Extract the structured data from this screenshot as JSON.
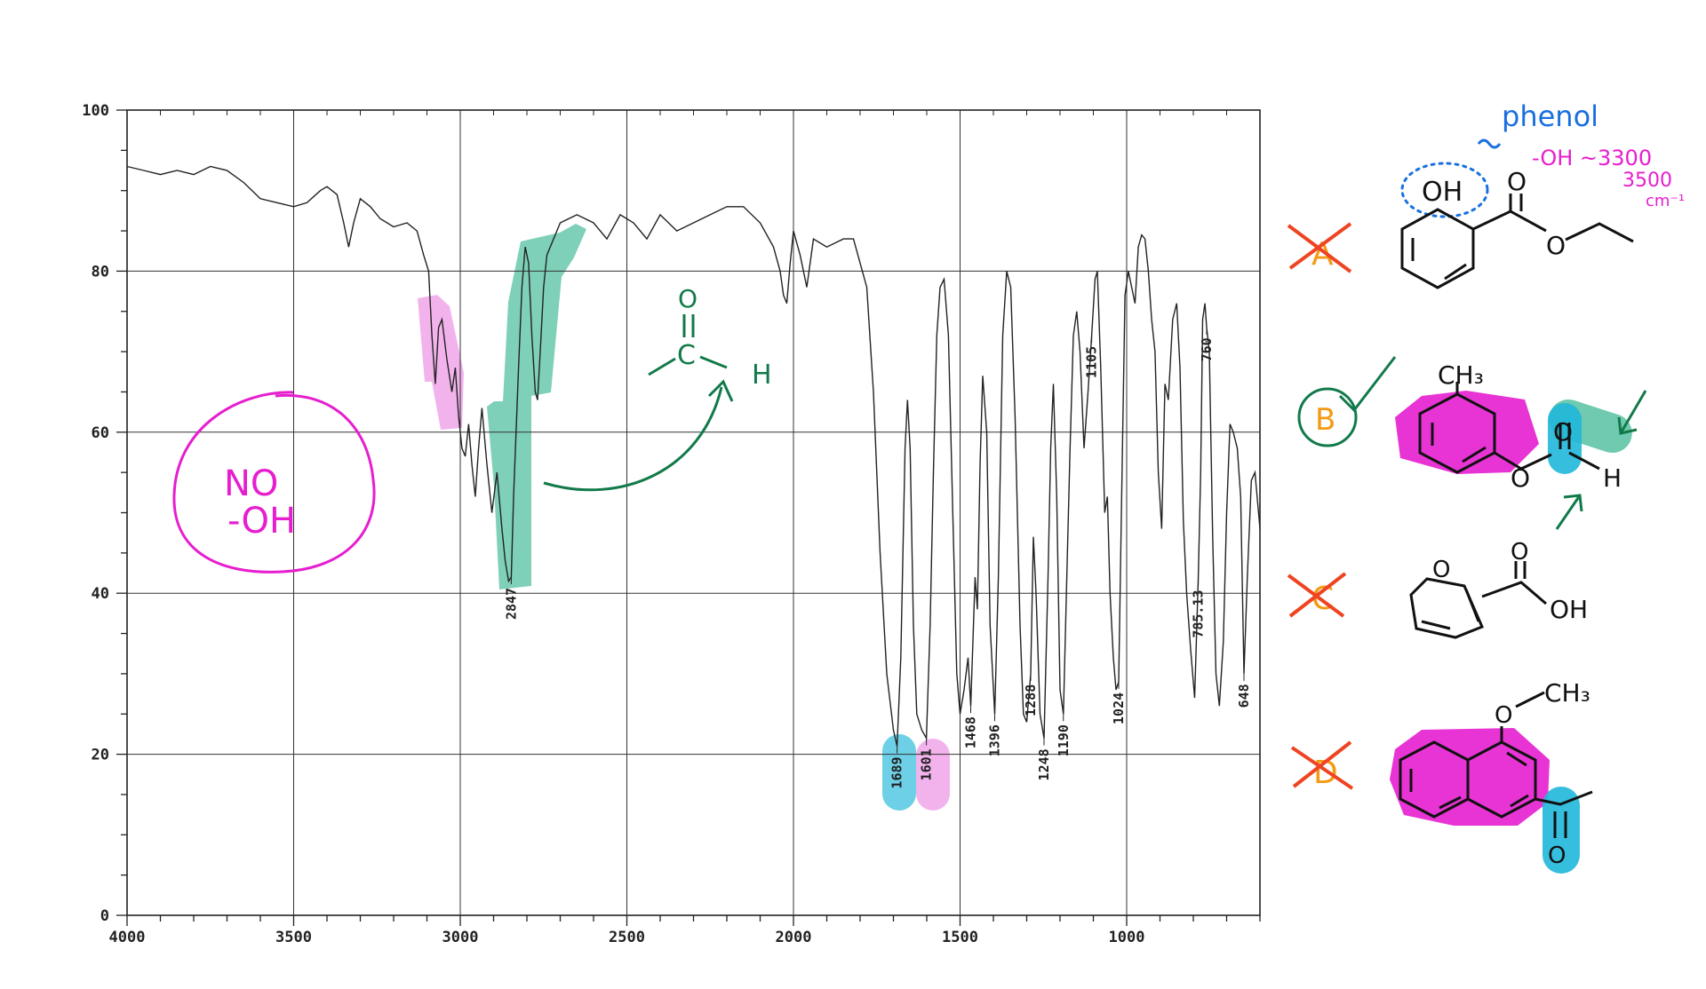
{
  "chart_data": {
    "type": "line",
    "title": "",
    "xlabel": "",
    "ylabel": "",
    "xlim": [
      4000,
      600
    ],
    "ylim": [
      0,
      100
    ],
    "x_ticks": [
      "4000",
      "3500",
      "3000",
      "2500",
      "2000",
      "1500",
      "1000"
    ],
    "y_ticks": [
      "100",
      "80",
      "60",
      "40",
      "20",
      "0"
    ],
    "grid": true,
    "series": [
      {
        "points": [
          [
            4000,
            93
          ],
          [
            3950,
            92.5
          ],
          [
            3900,
            92
          ],
          [
            3850,
            92.5
          ],
          [
            3800,
            92
          ],
          [
            3750,
            93
          ],
          [
            3700,
            92.5
          ],
          [
            3650,
            91
          ],
          [
            3600,
            89
          ],
          [
            3550,
            88.5
          ],
          [
            3500,
            88
          ],
          [
            3460,
            88.5
          ],
          [
            3420,
            90
          ],
          [
            3400,
            90.5
          ],
          [
            3370,
            89.5
          ],
          [
            3350,
            86
          ],
          [
            3335,
            83
          ],
          [
            3320,
            86
          ],
          [
            3300,
            89
          ],
          [
            3270,
            88
          ],
          [
            3240,
            86.5
          ],
          [
            3200,
            85.5
          ],
          [
            3160,
            86
          ],
          [
            3130,
            85
          ],
          [
            3110,
            82
          ],
          [
            3095,
            80
          ],
          [
            3085,
            72
          ],
          [
            3075,
            66
          ],
          [
            3065,
            73
          ],
          [
            3055,
            74
          ],
          [
            3040,
            69
          ],
          [
            3025,
            65
          ],
          [
            3015,
            68
          ],
          [
            3005,
            62
          ],
          [
            2995,
            58
          ],
          [
            2985,
            57
          ],
          [
            2975,
            61
          ],
          [
            2965,
            56
          ],
          [
            2955,
            52
          ],
          [
            2945,
            58
          ],
          [
            2935,
            63
          ],
          [
            2920,
            56
          ],
          [
            2905,
            50
          ],
          [
            2890,
            55
          ],
          [
            2875,
            48
          ],
          [
            2865,
            44
          ],
          [
            2855,
            41.5
          ],
          [
            2847,
            42
          ],
          [
            2840,
            52
          ],
          [
            2825,
            68
          ],
          [
            2815,
            78
          ],
          [
            2805,
            83
          ],
          [
            2795,
            81
          ],
          [
            2785,
            72
          ],
          [
            2775,
            65
          ],
          [
            2768,
            64
          ],
          [
            2760,
            70
          ],
          [
            2750,
            78
          ],
          [
            2740,
            82
          ],
          [
            2720,
            84
          ],
          [
            2700,
            86
          ],
          [
            2650,
            87
          ],
          [
            2600,
            86
          ],
          [
            2560,
            84
          ],
          [
            2520,
            87
          ],
          [
            2480,
            86
          ],
          [
            2440,
            84
          ],
          [
            2400,
            87
          ],
          [
            2350,
            85
          ],
          [
            2300,
            86
          ],
          [
            2250,
            87
          ],
          [
            2200,
            88
          ],
          [
            2150,
            88
          ],
          [
            2100,
            86
          ],
          [
            2060,
            83
          ],
          [
            2040,
            80
          ],
          [
            2030,
            77
          ],
          [
            2020,
            76
          ],
          [
            2010,
            81
          ],
          [
            2000,
            85
          ],
          [
            1980,
            82
          ],
          [
            1960,
            78
          ],
          [
            1940,
            84
          ],
          [
            1900,
            83
          ],
          [
            1850,
            84
          ],
          [
            1820,
            84
          ],
          [
            1800,
            81
          ],
          [
            1780,
            78
          ],
          [
            1760,
            65
          ],
          [
            1740,
            45
          ],
          [
            1720,
            30
          ],
          [
            1700,
            23
          ],
          [
            1689,
            21
          ],
          [
            1678,
            32
          ],
          [
            1665,
            58
          ],
          [
            1658,
            64
          ],
          [
            1650,
            58
          ],
          [
            1640,
            36
          ],
          [
            1630,
            25
          ],
          [
            1615,
            23
          ],
          [
            1601,
            22
          ],
          [
            1590,
            36
          ],
          [
            1580,
            55
          ],
          [
            1570,
            72
          ],
          [
            1560,
            78
          ],
          [
            1548,
            79
          ],
          [
            1535,
            72
          ],
          [
            1522,
            50
          ],
          [
            1510,
            30
          ],
          [
            1500,
            25
          ],
          [
            1488,
            28
          ],
          [
            1476,
            32
          ],
          [
            1468,
            26
          ],
          [
            1455,
            42
          ],
          [
            1448,
            38
          ],
          [
            1440,
            56
          ],
          [
            1432,
            67
          ],
          [
            1420,
            60
          ],
          [
            1410,
            36
          ],
          [
            1396,
            25
          ],
          [
            1385,
            42
          ],
          [
            1372,
            72
          ],
          [
            1360,
            80
          ],
          [
            1348,
            78
          ],
          [
            1335,
            62
          ],
          [
            1320,
            36
          ],
          [
            1310,
            25
          ],
          [
            1300,
            24
          ],
          [
            1288,
            30
          ],
          [
            1280,
            47
          ],
          [
            1272,
            40
          ],
          [
            1260,
            25
          ],
          [
            1248,
            22
          ],
          [
            1236,
            42
          ],
          [
            1228,
            58
          ],
          [
            1220,
            66
          ],
          [
            1210,
            52
          ],
          [
            1200,
            28
          ],
          [
            1190,
            25
          ],
          [
            1178,
            45
          ],
          [
            1170,
            58
          ],
          [
            1160,
            72
          ],
          [
            1150,
            75
          ],
          [
            1140,
            70
          ],
          [
            1128,
            58
          ],
          [
            1116,
            65
          ],
          [
            1105,
            72
          ],
          [
            1095,
            79
          ],
          [
            1088,
            80
          ],
          [
            1078,
            68
          ],
          [
            1066,
            50
          ],
          [
            1058,
            52
          ],
          [
            1050,
            40
          ],
          [
            1040,
            32
          ],
          [
            1032,
            28
          ],
          [
            1024,
            29
          ],
          [
            1014,
            55
          ],
          [
            1005,
            77
          ],
          [
            995,
            80
          ],
          [
            985,
            78
          ],
          [
            975,
            76
          ],
          [
            965,
            83
          ],
          [
            955,
            84.5
          ],
          [
            945,
            84
          ],
          [
            935,
            80
          ],
          [
            925,
            74
          ],
          [
            915,
            70
          ],
          [
            905,
            55
          ],
          [
            895,
            48
          ],
          [
            885,
            66
          ],
          [
            875,
            64
          ],
          [
            862,
            74
          ],
          [
            850,
            76
          ],
          [
            840,
            68
          ],
          [
            830,
            49
          ],
          [
            820,
            40
          ],
          [
            808,
            33
          ],
          [
            796,
            27
          ],
          [
            785,
            42
          ],
          [
            778,
            55
          ],
          [
            772,
            74
          ],
          [
            765,
            76
          ],
          [
            760,
            73
          ],
          [
            752,
            70
          ],
          [
            742,
            47
          ],
          [
            732,
            30
          ],
          [
            722,
            26
          ],
          [
            710,
            34
          ],
          [
            700,
            50
          ],
          [
            690,
            61
          ],
          [
            680,
            60
          ],
          [
            668,
            58
          ],
          [
            658,
            52
          ],
          [
            648,
            30
          ],
          [
            638,
            42
          ],
          [
            626,
            54
          ],
          [
            615,
            55
          ],
          [
            600,
            48
          ]
        ]
      }
    ],
    "peak_labels": [
      {
        "x": 2847,
        "text": "2847"
      },
      {
        "x": 1689,
        "text": "1689"
      },
      {
        "x": 1601,
        "text": "1601"
      },
      {
        "x": 1468,
        "text": "1468"
      },
      {
        "x": 1396,
        "text": "1396"
      },
      {
        "x": 1288,
        "text": "1288"
      },
      {
        "x": 1248,
        "text": "1248"
      },
      {
        "x": 1190,
        "text": "1190"
      },
      {
        "x": 1105,
        "text": "1105"
      },
      {
        "x": 1024,
        "text": "1024"
      },
      {
        "x": 785.13,
        "text": "785.13"
      },
      {
        "x": 760,
        "text": "760"
      },
      {
        "x": 648,
        "text": "648"
      }
    ]
  },
  "annotations": {
    "no_oh": [
      "NO",
      "-OH"
    ],
    "aldehyde_carbonyl_o": "O",
    "aldehyde_carbonyl_c": "C",
    "aldehyde_h": "H",
    "phenol_label": "phenol",
    "oh_range": "-OH ~3300",
    "oh_range_2": "3500",
    "oh_units": "cm⁻¹",
    "choice_a": "A",
    "choice_b": "B",
    "choice_c": "C",
    "choice_d": "D"
  },
  "structures": {
    "a_oh": "OH",
    "a_o_carbonyl": "O",
    "a_o_ester": "O",
    "b_ch3": "CH₃",
    "b_o_carbonyl": "O",
    "b_o_ether": "O",
    "b_h": "H",
    "c_o_ring": "O",
    "c_o_carbonyl": "O",
    "c_oh": "OH",
    "d_o": "O",
    "d_ch3": "CH₃",
    "d_o_carbonyl": "O"
  },
  "colors": {
    "magenta": "#e61ecf",
    "green": "#127a4a",
    "teal_highlight": "#5fc4a6",
    "pink_highlight": "#f0a6ea",
    "cyan_highlight": "#1fb7d9",
    "orange": "#f39a14",
    "red_x": "#ee4422",
    "blue": "#1a6fe0",
    "line": "#222222"
  }
}
